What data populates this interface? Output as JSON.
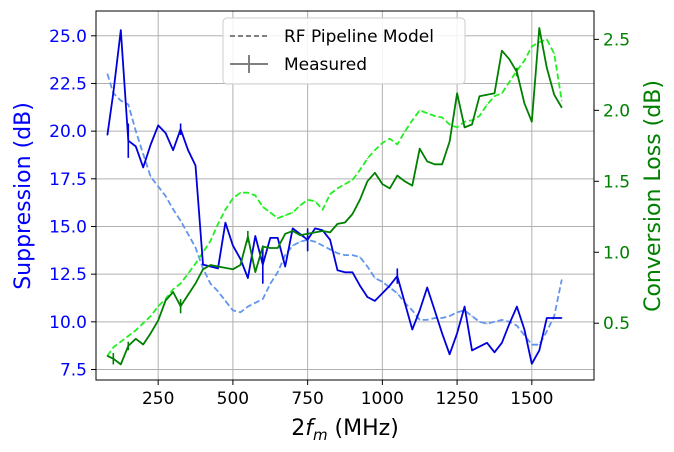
{
  "chart_data": {
    "type": "line",
    "title": "",
    "xlabel": "2f_m (MHz)",
    "xlabel_parts": {
      "pre": "2",
      "var": "f",
      "sub": "m",
      "post": " (MHz)"
    },
    "ylabel_left": "Suppression (dB)",
    "ylabel_right": "Conversion Loss (dB)",
    "xlim": [
      42,
      1708
    ],
    "ylim_left": [
      6.95,
      26.3
    ],
    "ylim_right": [
      0.1,
      2.7
    ],
    "xticks": [
      250,
      500,
      750,
      1000,
      1250,
      1500
    ],
    "xtick_labels": [
      "250",
      "500",
      "750",
      "1000",
      "1250",
      "1500"
    ],
    "yticks_left": [
      7.5,
      10.0,
      12.5,
      15.0,
      17.5,
      20.0,
      22.5,
      25.0
    ],
    "ytick_labels_left": [
      "7.5",
      "10.0",
      "12.5",
      "15.0",
      "17.5",
      "20.0",
      "22.5",
      "25.0"
    ],
    "yticks_right": [
      0.5,
      1.0,
      1.5,
      2.0,
      2.5
    ],
    "ytick_labels_right": [
      "0.5",
      "1.0",
      "1.5",
      "2.0",
      "2.5"
    ],
    "grid": true,
    "legend": {
      "location": "top-center",
      "entries": [
        {
          "label": "RF Pipeline Model",
          "style": "dashed"
        },
        {
          "label": "Measured",
          "style": "solid-errorbar"
        }
      ]
    },
    "colors": {
      "suppression_measured": "#0000dd",
      "suppression_model": "#6495ed",
      "loss_measured": "#008000",
      "loss_model": "#22ee22",
      "legend_line": "#808080",
      "axis_left": "#0000ff",
      "axis_right": "#008000",
      "grid": "#b0b0b0"
    },
    "series": [
      {
        "name": "Suppression Measured",
        "axis": "left",
        "style": "solid",
        "color_key": "suppression_measured",
        "x": [
          80,
          100,
          125,
          150,
          175,
          200,
          225,
          250,
          275,
          300,
          325,
          350,
          375,
          400,
          425,
          450,
          475,
          500,
          525,
          550,
          575,
          600,
          625,
          650,
          675,
          700,
          725,
          750,
          775,
          800,
          825,
          850,
          875,
          900,
          925,
          950,
          975,
          1000,
          1025,
          1050,
          1075,
          1100,
          1125,
          1150,
          1175,
          1200,
          1225,
          1250,
          1275,
          1300,
          1325,
          1350,
          1375,
          1400,
          1425,
          1450,
          1475,
          1500,
          1525,
          1550,
          1575,
          1600
        ],
        "y": [
          19.8,
          22.0,
          25.3,
          19.5,
          19.2,
          18.1,
          19.3,
          20.3,
          19.9,
          19.0,
          20.1,
          19.0,
          18.2,
          13.0,
          12.9,
          12.8,
          15.2,
          14.0,
          13.3,
          12.3,
          14.5,
          13.0,
          14.4,
          14.4,
          12.9,
          14.9,
          14.6,
          14.3,
          14.9,
          14.8,
          14.3,
          12.7,
          12.6,
          12.6,
          11.9,
          11.3,
          11.1,
          11.5,
          11.9,
          12.4,
          11.0,
          9.6,
          10.6,
          11.8,
          10.6,
          9.4,
          8.3,
          9.4,
          10.8,
          8.5,
          8.7,
          8.9,
          8.4,
          8.9,
          9.9,
          10.8,
          9.6,
          7.8,
          8.5,
          10.2,
          10.2,
          10.2
        ],
        "error_bars": [
          {
            "x": 150,
            "err": 0.9
          },
          {
            "x": 325,
            "err": 0.3
          },
          {
            "x": 600,
            "err": 1.0
          },
          {
            "x": 750,
            "err": 0.6
          },
          {
            "x": 1050,
            "err": 0.4
          }
        ]
      },
      {
        "name": "Suppression Model",
        "axis": "left",
        "style": "dashed",
        "color_key": "suppression_model",
        "x": [
          80,
          100,
          125,
          150,
          175,
          200,
          225,
          250,
          275,
          300,
          325,
          350,
          375,
          400,
          425,
          450,
          475,
          500,
          525,
          550,
          575,
          600,
          625,
          650,
          675,
          700,
          725,
          750,
          775,
          800,
          825,
          850,
          875,
          900,
          925,
          950,
          975,
          1000,
          1025,
          1050,
          1075,
          1100,
          1125,
          1150,
          1175,
          1200,
          1225,
          1250,
          1275,
          1300,
          1325,
          1350,
          1375,
          1400,
          1425,
          1450,
          1475,
          1500,
          1525,
          1550,
          1575,
          1600
        ],
        "y": [
          23.0,
          22.0,
          21.6,
          21.4,
          20.0,
          18.8,
          17.6,
          17.1,
          16.6,
          15.9,
          15.3,
          14.6,
          13.9,
          12.8,
          12.0,
          11.6,
          11.1,
          10.6,
          10.5,
          10.8,
          11.0,
          11.2,
          12.0,
          12.6,
          13.5,
          14.0,
          14.2,
          14.3,
          14.2,
          14.0,
          13.8,
          13.6,
          13.5,
          13.5,
          13.4,
          12.9,
          12.3,
          12.1,
          11.8,
          11.5,
          11.0,
          10.6,
          10.1,
          10.1,
          10.2,
          10.2,
          10.3,
          10.5,
          10.6,
          10.3,
          10.0,
          9.9,
          10.0,
          10.1,
          10.0,
          9.8,
          9.3,
          8.8,
          8.8,
          9.5,
          10.3,
          12.2
        ]
      },
      {
        "name": "Conversion Loss Measured",
        "axis": "right",
        "style": "solid",
        "color_key": "loss_measured",
        "x": [
          80,
          100,
          125,
          150,
          175,
          200,
          225,
          250,
          275,
          300,
          325,
          350,
          375,
          400,
          425,
          450,
          475,
          500,
          525,
          550,
          575,
          600,
          625,
          650,
          675,
          700,
          725,
          750,
          775,
          800,
          825,
          850,
          875,
          900,
          925,
          950,
          975,
          1000,
          1025,
          1050,
          1075,
          1100,
          1125,
          1150,
          1175,
          1200,
          1225,
          1250,
          1275,
          1300,
          1325,
          1350,
          1375,
          1400,
          1425,
          1450,
          1475,
          1500,
          1525,
          1550,
          1575,
          1600
        ],
        "y": [
          0.27,
          0.25,
          0.21,
          0.34,
          0.39,
          0.35,
          0.43,
          0.52,
          0.66,
          0.72,
          0.62,
          0.7,
          0.78,
          0.88,
          0.91,
          0.9,
          0.89,
          0.88,
          0.91,
          1.11,
          0.86,
          1.04,
          1.03,
          1.03,
          1.13,
          1.15,
          1.12,
          1.13,
          1.14,
          1.15,
          1.14,
          1.2,
          1.21,
          1.27,
          1.37,
          1.5,
          1.56,
          1.48,
          1.45,
          1.54,
          1.5,
          1.47,
          1.73,
          1.64,
          1.62,
          1.62,
          1.78,
          2.12,
          1.88,
          1.9,
          2.1,
          2.11,
          2.12,
          2.42,
          2.36,
          2.27,
          2.05,
          1.92,
          2.58,
          2.3,
          2.11,
          2.02
        ],
        "error_bars": [
          {
            "x": 100,
            "err": 0.04
          },
          {
            "x": 150,
            "err": 0.03
          },
          {
            "x": 325,
            "err": 0.05
          },
          {
            "x": 550,
            "err": 0.04
          },
          {
            "x": 1450,
            "err": 0.03
          }
        ]
      },
      {
        "name": "Conversion Loss Model",
        "axis": "right",
        "style": "dashed",
        "color_key": "loss_model",
        "x": [
          80,
          100,
          125,
          150,
          175,
          200,
          225,
          250,
          275,
          300,
          325,
          350,
          375,
          400,
          425,
          450,
          475,
          500,
          525,
          550,
          575,
          600,
          625,
          650,
          675,
          700,
          725,
          750,
          775,
          800,
          825,
          850,
          875,
          900,
          925,
          950,
          975,
          1000,
          1025,
          1050,
          1075,
          1100,
          1125,
          1150,
          1175,
          1200,
          1225,
          1250,
          1275,
          1300,
          1325,
          1350,
          1375,
          1400,
          1425,
          1450,
          1475,
          1500,
          1525,
          1550,
          1575,
          1600
        ],
        "y": [
          0.27,
          0.33,
          0.37,
          0.41,
          0.45,
          0.5,
          0.55,
          0.62,
          0.67,
          0.74,
          0.78,
          0.85,
          0.92,
          1.0,
          1.08,
          1.2,
          1.3,
          1.38,
          1.42,
          1.42,
          1.4,
          1.32,
          1.28,
          1.24,
          1.26,
          1.28,
          1.33,
          1.37,
          1.36,
          1.3,
          1.41,
          1.45,
          1.48,
          1.51,
          1.58,
          1.66,
          1.72,
          1.77,
          1.8,
          1.76,
          1.85,
          1.93,
          2.0,
          1.98,
          1.96,
          1.95,
          1.9,
          1.88,
          1.92,
          1.93,
          1.96,
          2.04,
          2.1,
          2.12,
          2.2,
          2.28,
          2.35,
          2.45,
          2.48,
          2.5,
          2.4,
          2.07
        ]
      }
    ]
  }
}
